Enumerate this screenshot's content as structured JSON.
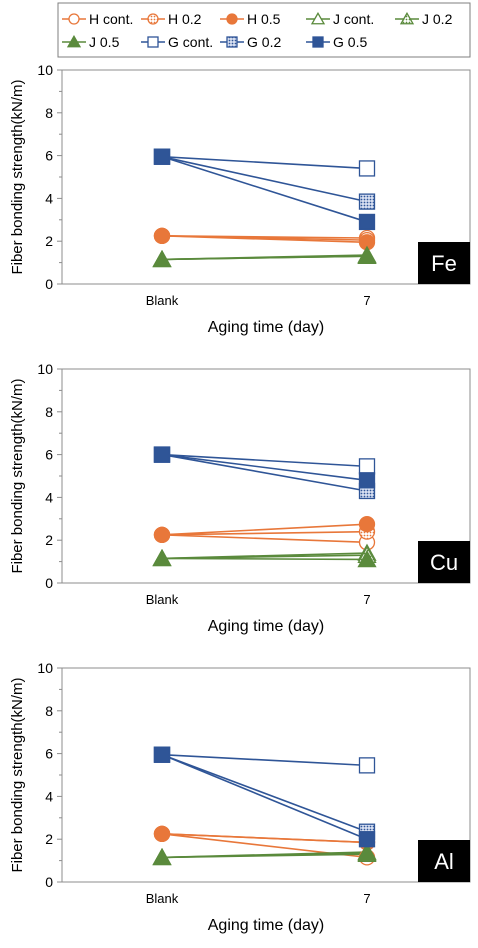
{
  "legend": {
    "entries": [
      {
        "label": "H cont.",
        "color": "#E8773A",
        "marker": "circle",
        "fill": "open"
      },
      {
        "label": "H 0.2",
        "color": "#E8773A",
        "marker": "circle",
        "fill": "hatched"
      },
      {
        "label": "H 0.5",
        "color": "#E8773A",
        "marker": "circle",
        "fill": "solid"
      },
      {
        "label": "J cont.",
        "color": "#5A8A3C",
        "marker": "triangle",
        "fill": "open"
      },
      {
        "label": "J 0.2",
        "color": "#5A8A3C",
        "marker": "triangle",
        "fill": "hatched"
      },
      {
        "label": "J 0.5",
        "color": "#5A8A3C",
        "marker": "triangle",
        "fill": "solid"
      },
      {
        "label": "G cont.",
        "color": "#2F5597",
        "marker": "square",
        "fill": "open"
      },
      {
        "label": "G 0.2",
        "color": "#2F5597",
        "marker": "square",
        "fill": "hatched"
      },
      {
        "label": "G 0.5",
        "color": "#2F5597",
        "marker": "square",
        "fill": "solid"
      }
    ]
  },
  "chart_data": [
    {
      "type": "line",
      "badge": "Fe",
      "ylabel": "Fiber bonding strength(kN/m)",
      "xlabel": "Aging time (day)",
      "categories": [
        "Blank",
        "7"
      ],
      "yticks": [
        "0",
        "2",
        "4",
        "6",
        "8",
        "10"
      ],
      "ylim": [
        0,
        10
      ],
      "series": [
        {
          "name": "H cont.",
          "values": [
            2.25,
            2.15
          ]
        },
        {
          "name": "H 0.2",
          "values": [
            2.25,
            2.05
          ]
        },
        {
          "name": "H 0.5",
          "values": [
            2.25,
            1.95
          ]
        },
        {
          "name": "J cont.",
          "values": [
            1.15,
            1.3
          ]
        },
        {
          "name": "J 0.2",
          "values": [
            1.15,
            1.35
          ]
        },
        {
          "name": "J 0.5",
          "values": [
            1.15,
            1.3
          ]
        },
        {
          "name": "G cont.",
          "values": [
            5.95,
            5.4
          ]
        },
        {
          "name": "G 0.2",
          "values": [
            5.95,
            3.85
          ]
        },
        {
          "name": "G 0.5",
          "values": [
            5.95,
            2.9
          ]
        }
      ]
    },
    {
      "type": "line",
      "badge": "Cu",
      "ylabel": "Fiber bonding strength(kN/m)",
      "xlabel": "Aging time (day)",
      "categories": [
        "Blank",
        "7"
      ],
      "yticks": [
        "0",
        "2",
        "4",
        "6",
        "8",
        "10"
      ],
      "ylim": [
        0,
        10
      ],
      "series": [
        {
          "name": "H cont.",
          "values": [
            2.25,
            1.9
          ]
        },
        {
          "name": "H 0.2",
          "values": [
            2.25,
            2.4
          ]
        },
        {
          "name": "H 0.5",
          "values": [
            2.25,
            2.75
          ]
        },
        {
          "name": "J cont.",
          "values": [
            1.15,
            1.4
          ]
        },
        {
          "name": "J 0.2",
          "values": [
            1.15,
            1.3
          ]
        },
        {
          "name": "J 0.5",
          "values": [
            1.15,
            1.1
          ]
        },
        {
          "name": "G cont.",
          "values": [
            6.0,
            5.45
          ]
        },
        {
          "name": "G 0.2",
          "values": [
            6.0,
            4.3
          ]
        },
        {
          "name": "G 0.5",
          "values": [
            6.0,
            4.8
          ]
        }
      ]
    },
    {
      "type": "line",
      "badge": "Al",
      "ylabel": "Fiber bonding strength(kN/m)",
      "xlabel": "Aging time (day)",
      "categories": [
        "Blank",
        "7"
      ],
      "yticks": [
        "0",
        "2",
        "4",
        "6",
        "8",
        "10"
      ],
      "ylim": [
        0,
        10
      ],
      "series": [
        {
          "name": "H cont.",
          "values": [
            2.25,
            1.15
          ]
        },
        {
          "name": "H 0.2",
          "values": [
            2.25,
            1.85
          ]
        },
        {
          "name": "H 0.5",
          "values": [
            2.25,
            1.85
          ]
        },
        {
          "name": "J cont.",
          "values": [
            1.15,
            1.3
          ]
        },
        {
          "name": "J 0.2",
          "values": [
            1.15,
            1.4
          ]
        },
        {
          "name": "J 0.5",
          "values": [
            1.15,
            1.35
          ]
        },
        {
          "name": "G cont.",
          "values": [
            5.95,
            5.45
          ]
        },
        {
          "name": "G 0.2",
          "values": [
            5.95,
            2.35
          ]
        },
        {
          "name": "G 0.5",
          "values": [
            5.95,
            2.0
          ]
        }
      ]
    }
  ]
}
